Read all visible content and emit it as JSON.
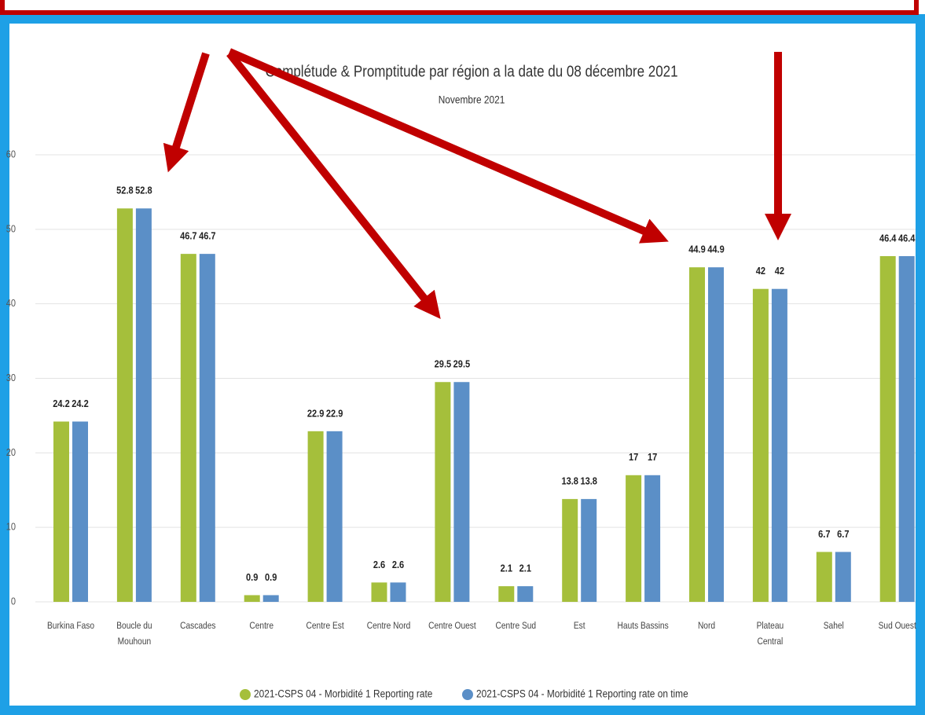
{
  "chart_data": {
    "type": "bar",
    "title": "Complétude & Promptitude par région a la date du 08 décembre 2021",
    "subtitle": "Novembre 2021",
    "categories": [
      "Burkina Faso",
      "Boucle du Mouhoun",
      "Cascades",
      "Centre",
      "Centre Est",
      "Centre Nord",
      "Centre Ouest",
      "Centre Sud",
      "Est",
      "Hauts Bassins",
      "Nord",
      "Plateau Central",
      "Sahel",
      "Sud Ouest"
    ],
    "series": [
      {
        "name": "2021-CSPS 04 - Morbidité 1 Reporting rate",
        "color": "#a5bf3b",
        "values": [
          24.2,
          52.8,
          46.7,
          0.9,
          22.9,
          2.6,
          29.5,
          2.1,
          13.8,
          17,
          44.9,
          42,
          6.7,
          46.4
        ]
      },
      {
        "name": "2021-CSPS 04 - Morbidité 1 Reporting rate on time",
        "color": "#5b8fc7",
        "values": [
          24.2,
          52.8,
          46.7,
          0.9,
          22.9,
          2.6,
          29.5,
          2.1,
          13.8,
          17,
          44.9,
          42,
          6.7,
          46.4
        ]
      }
    ],
    "ylim": [
      0,
      60
    ],
    "yticks": [
      0,
      10,
      20,
      30,
      40,
      50,
      60
    ],
    "grid": true,
    "legend": "bottom"
  }
}
